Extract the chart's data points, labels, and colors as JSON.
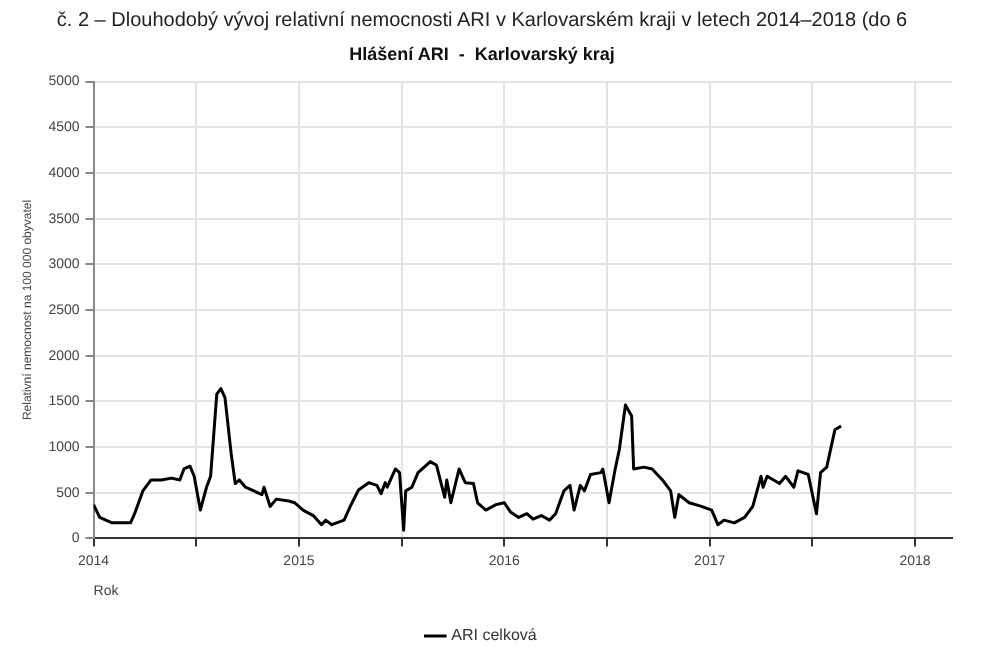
{
  "chart_data": {
    "type": "line",
    "title": "č. 2 – Dlouhodobý vývoj relativní nemocnosti ARI v Karlovarském kraji v letech 2014–2018 (do 6",
    "subtitle": "Hlášení ARI  -  Karlovarský kraj",
    "xlabel": "Rok",
    "ylabel": "Relativní nemocnost na 100 000 obyvatel",
    "xlim": [
      2014,
      2018.18
    ],
    "xticks": [
      2014,
      {
        "value": 2014.5,
        "label": null
      },
      2015,
      {
        "value": 2015.5,
        "label": null
      },
      2016,
      {
        "value": 2016.5,
        "label": null
      },
      2017,
      {
        "value": 2017.5,
        "label": null
      },
      2018
    ],
    "ylim": [
      0,
      5000
    ],
    "yticks": [
      0,
      500,
      1000,
      1500,
      2000,
      2500,
      3000,
      3500,
      4000,
      4500,
      5000
    ],
    "grid": true,
    "legend": "bottom",
    "marker": "none",
    "line_style": "solid",
    "series": [
      {
        "name": "ARI celková",
        "color": "#000000",
        "x": [
          2014.0,
          2014.03,
          2014.09,
          2014.18,
          2014.2,
          2014.24,
          2014.28,
          2014.33,
          2014.38,
          2014.42,
          2014.44,
          2014.47,
          2014.49,
          2014.52,
          2014.55,
          2014.57,
          2014.6,
          2014.62,
          2014.64,
          2014.67,
          2014.69,
          2014.71,
          2014.74,
          2014.78,
          2014.82,
          2014.83,
          2014.86,
          2014.89,
          2014.95,
          2014.98,
          2015.02,
          2015.07,
          2015.11,
          2015.13,
          2015.16,
          2015.22,
          2015.25,
          2015.29,
          2015.34,
          2015.38,
          2015.4,
          2015.42,
          2015.43,
          2015.47,
          2015.49,
          2015.51,
          2015.52,
          2015.55,
          2015.58,
          2015.64,
          2015.67,
          2015.71,
          2015.72,
          2015.74,
          2015.78,
          2015.81,
          2015.85,
          2015.87,
          2015.91,
          2015.96,
          2016.0,
          2016.03,
          2016.07,
          2016.11,
          2016.14,
          2016.18,
          2016.22,
          2016.25,
          2016.29,
          2016.32,
          2016.34,
          2016.37,
          2016.39,
          2016.42,
          2016.47,
          2016.48,
          2016.51,
          2016.54,
          2016.56,
          2016.59,
          2016.62,
          2016.63,
          2016.68,
          2016.72,
          2016.77,
          2016.81,
          2016.83,
          2016.85,
          2016.9,
          2016.96,
          2017.01,
          2017.04,
          2017.07,
          2017.12,
          2017.17,
          2017.21,
          2017.25,
          2017.26,
          2017.28,
          2017.34,
          2017.37,
          2017.41,
          2017.43,
          2017.48,
          2017.52,
          2017.54,
          2017.57,
          2017.61,
          2017.64
        ],
        "values": [
          370,
          230,
          170,
          170,
          270,
          520,
          640,
          640,
          660,
          640,
          760,
          790,
          680,
          310,
          560,
          680,
          1580,
          1640,
          1540,
          930,
          600,
          640,
          560,
          520,
          480,
          560,
          350,
          430,
          410,
          390,
          310,
          250,
          150,
          200,
          150,
          200,
          350,
          530,
          610,
          580,
          490,
          610,
          560,
          760,
          720,
          90,
          520,
          560,
          720,
          840,
          800,
          450,
          640,
          390,
          760,
          610,
          600,
          390,
          310,
          370,
          390,
          290,
          230,
          270,
          210,
          250,
          200,
          270,
          520,
          580,
          310,
          580,
          520,
          700,
          720,
          760,
          390,
          760,
          970,
          1460,
          1340,
          760,
          780,
          760,
          640,
          520,
          230,
          480,
          390,
          350,
          310,
          150,
          200,
          170,
          230,
          350,
          680,
          560,
          680,
          600,
          680,
          560,
          740,
          700,
          270,
          720,
          780,
          1190,
          1230
        ]
      }
    ]
  }
}
